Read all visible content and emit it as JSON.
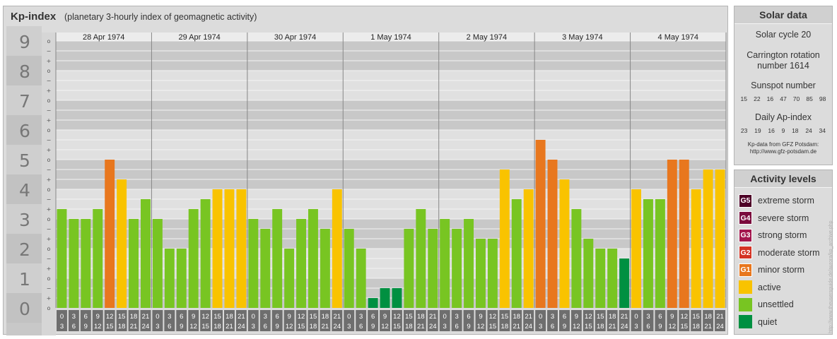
{
  "header": {
    "title": "Kp-index",
    "subtitle": "(planetary 3-hourly index of geomagnetic activity)"
  },
  "chart_data": {
    "type": "bar",
    "title": "Kp-index",
    "subtitle": "(planetary 3-hourly index of geomagnetic activity)",
    "ylim": [
      0,
      9
    ],
    "y_ticks": [
      "0",
      "1",
      "2",
      "3",
      "4",
      "5",
      "6",
      "7",
      "8",
      "9"
    ],
    "y_subticks": [
      "o",
      "+",
      "−",
      "o"
    ],
    "days": [
      "28 Apr 1974",
      "29 Apr 1974",
      "30 Apr 1974",
      "1 May 1974",
      "2 May 1974",
      "3 May 1974",
      "4 May 1974"
    ],
    "interval_start": [
      "0",
      "3",
      "6",
      "9",
      "12",
      "15",
      "18",
      "21"
    ],
    "interval_end": [
      "3",
      "6",
      "9",
      "12",
      "15",
      "18",
      "21",
      "24"
    ],
    "values": [
      [
        3.333,
        3.0,
        3.0,
        3.333,
        5.0,
        4.333,
        3.0,
        3.667
      ],
      [
        3.0,
        2.0,
        2.0,
        3.333,
        3.667,
        4.0,
        4.0,
        4.0
      ],
      [
        3.0,
        2.667,
        3.333,
        2.0,
        3.0,
        3.333,
        2.667,
        4.0
      ],
      [
        2.667,
        2.0,
        0.333,
        0.667,
        0.667,
        2.667,
        3.333,
        2.667
      ],
      [
        3.0,
        2.667,
        3.0,
        2.333,
        2.333,
        4.667,
        3.667,
        4.0
      ],
      [
        5.667,
        5.0,
        4.333,
        3.333,
        2.333,
        2.0,
        2.0,
        1.667
      ],
      [
        4.0,
        3.667,
        3.667,
        5.0,
        5.0,
        4.0,
        4.667,
        4.667
      ]
    ],
    "grid": true,
    "bands": "alternating light/dark per Kp unit"
  },
  "solar": {
    "title": "Solar data",
    "cycle": "Solar cycle 20",
    "carrington_1": "Carrington rotation",
    "carrington_2": "number 1614",
    "sunspot_title": "Sunspot number",
    "sunspot_values": [
      "15",
      "22",
      "16",
      "47",
      "70",
      "85",
      "98"
    ],
    "ap_title": "Daily Ap-index",
    "ap_values": [
      "23",
      "19",
      "16",
      "9",
      "18",
      "24",
      "34"
    ],
    "credit_1": "Kp-data from GFZ Potsdam:",
    "credit_2": "http://www.gfz-potsdam.de"
  },
  "levels": {
    "title": "Activity levels",
    "items": [
      {
        "badge": "G5",
        "label": "extreme storm",
        "color": "#4d0026"
      },
      {
        "badge": "G4",
        "label": "severe storm",
        "color": "#7a0a3c"
      },
      {
        "badge": "G3",
        "label": "strong storm",
        "color": "#a3174e"
      },
      {
        "badge": "G2",
        "label": "moderate storm",
        "color": "#d43324"
      },
      {
        "badge": "G1",
        "label": "minor storm",
        "color": "#e8771e"
      },
      {
        "badge": "",
        "label": "active",
        "color": "#f9c300"
      },
      {
        "badge": "",
        "label": "unsettled",
        "color": "#78c522"
      },
      {
        "badge": "",
        "label": "quiet",
        "color": "#009041"
      }
    ]
  },
  "footer": {
    "url": "http://www.theusersguide.de/aurora/kp_archive.php"
  }
}
